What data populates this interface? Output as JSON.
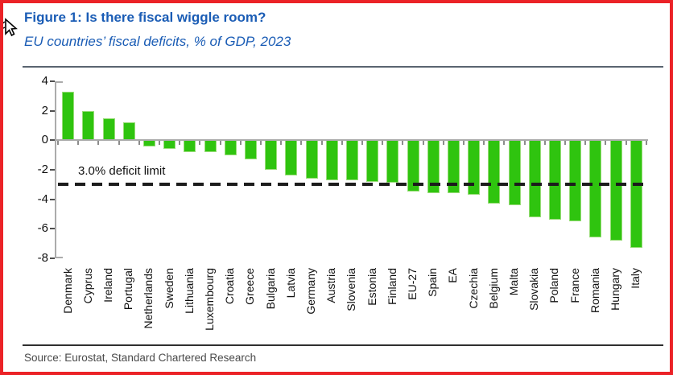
{
  "header": {
    "title": "Figure 1: Is there fiscal wiggle room?",
    "subtitle": "EU countries’ fiscal deficits, % of GDP, 2023"
  },
  "chart_data": {
    "type": "bar",
    "title": "Figure 1: Is there fiscal wiggle room?",
    "subtitle": "EU countries’ fiscal deficits, % of GDP, 2023",
    "categories": [
      "Denmark",
      "Cyprus",
      "Ireland",
      "Portugal",
      "Netherlands",
      "Sweden",
      "Lithuania",
      "Luxembourg",
      "Croatia",
      "Greece",
      "Bulgaria",
      "Latvia",
      "Germany",
      "Austria",
      "Slovenia",
      "Estonia",
      "Finland",
      "EU-27",
      "Spain",
      "EA",
      "Czechia",
      "Belgium",
      "Malta",
      "Slovakia",
      "Poland",
      "France",
      "Romania",
      "Hungary",
      "Italy"
    ],
    "values": [
      3.3,
      2.0,
      1.5,
      1.2,
      -0.4,
      -0.6,
      -0.8,
      -0.8,
      -1.0,
      -1.3,
      -2.0,
      -2.4,
      -2.6,
      -2.7,
      -2.7,
      -2.8,
      -2.9,
      -3.5,
      -3.6,
      -3.6,
      -3.7,
      -4.3,
      -4.4,
      -5.2,
      -5.4,
      -5.5,
      -6.6,
      -6.8,
      -7.3
    ],
    "ylim": [
      -8,
      4
    ],
    "yticks": [
      4,
      2,
      0,
      -2,
      -4,
      -6,
      -8
    ],
    "grid": false,
    "legend": "none",
    "bar_color": "#2FC40F",
    "annotation": {
      "label": "3.0% deficit limit",
      "value": -3.0,
      "style": "dashed-black"
    }
  },
  "footer": {
    "source": "Source: Eurostat, Standard Chartered Research"
  },
  "colors": {
    "frame_border": "#EB2227",
    "title_blue": "#1A5CB5",
    "bar_green": "#2FC40F",
    "axis_gray": "#ABABAB",
    "limit_line": "#1C1C1C"
  }
}
